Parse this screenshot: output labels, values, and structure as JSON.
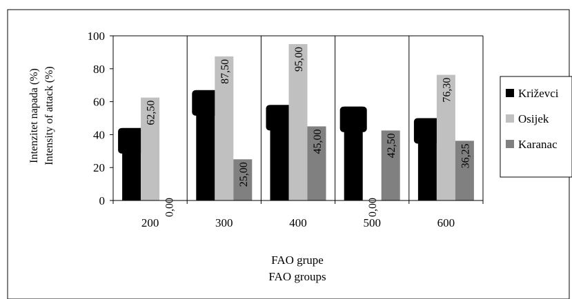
{
  "chart_data": {
    "type": "bar",
    "categories": [
      "200",
      "300",
      "400",
      "500",
      "600"
    ],
    "series": [
      {
        "name": "Križevci",
        "values": [
          44,
          67,
          58,
          57,
          50
        ],
        "color": "#000000"
      },
      {
        "name": "Osijek",
        "values": [
          62.5,
          87.5,
          95.0,
          0.0,
          76.3
        ],
        "color": "#c0c0c0"
      },
      {
        "name": "Karanac",
        "values": [
          0.0,
          25.0,
          45.0,
          42.5,
          36.25
        ],
        "color": "#808080"
      }
    ],
    "data_labels": {
      "Osijek": [
        "62,50",
        "87,50",
        "95,00",
        "0,00",
        "76,30"
      ],
      "Karanac": [
        "0,00",
        "25,00",
        "45,00",
        "42,50",
        "36,25"
      ]
    },
    "ylabel_lines": [
      "Intenzitet napada (%)",
      "Intensity of attack (%)"
    ],
    "xlabel_lines": [
      "FAO grupe",
      "FAO groups"
    ],
    "yticks": [
      "0",
      "20",
      "40",
      "60",
      "80",
      "100"
    ],
    "ylim": [
      0,
      100
    ],
    "grid": "vertical",
    "legend_position": "right"
  }
}
